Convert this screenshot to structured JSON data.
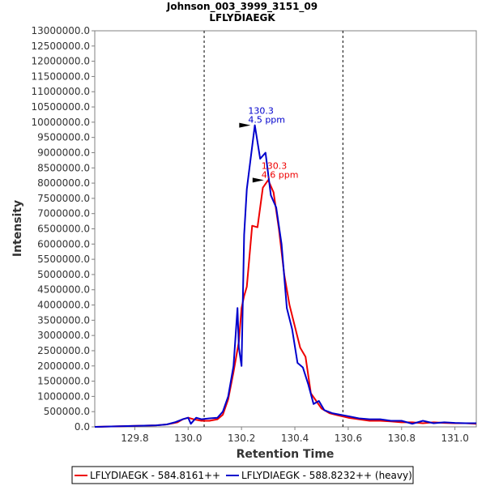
{
  "chart_data": {
    "type": "line",
    "title": "Johnson_003_3999_3151_09",
    "subtitle": "LFLYDIAEGK",
    "xlabel": "Retention Time",
    "ylabel": "Intensity",
    "xlim": [
      129.65,
      131.08
    ],
    "ylim": [
      0,
      13000000
    ],
    "x_ticks": [
      129.8,
      130.0,
      130.2,
      130.4,
      130.6,
      130.8,
      131.0
    ],
    "x_tick_labels": [
      "129.8",
      "130.0",
      "130.2",
      "130.4",
      "130.6",
      "130.8",
      "131.0"
    ],
    "y_ticks": [
      0,
      500000,
      1000000,
      1500000,
      2000000,
      2500000,
      3000000,
      3500000,
      4000000,
      4500000,
      5000000,
      5500000,
      6000000,
      6500000,
      7000000,
      7500000,
      8000000,
      8500000,
      9000000,
      9500000,
      10000000,
      10500000,
      11000000,
      11500000,
      12000000,
      12500000,
      13000000
    ],
    "y_tick_labels": [
      "0.0",
      "500000.0",
      "1000000.0",
      "1500000.0",
      "2000000.0",
      "2500000.0",
      "3000000.0",
      "3500000.0",
      "4000000.0",
      "4500000.0",
      "5000000.0",
      "5500000.0",
      "6000000.0",
      "6500000.0",
      "7000000.0",
      "7500000.0",
      "8000000.0",
      "8500000.0",
      "9000000.0",
      "9500000.0",
      "10000000.0",
      "10500000.0",
      "11000000.0",
      "11500000.0",
      "12000000.0",
      "12500000.0",
      "13000000.0"
    ],
    "vlines": [
      130.06,
      130.58
    ],
    "grid": false,
    "legend_position": "bottom",
    "series": [
      {
        "name": "LFLYDIAEGK - 584.8161++",
        "color": "#ee0000",
        "x": [
          129.65,
          129.88,
          129.92,
          129.96,
          129.98,
          130.0,
          130.02,
          130.05,
          130.08,
          130.11,
          130.13,
          130.15,
          130.17,
          130.19,
          130.2,
          130.21,
          130.22,
          130.24,
          130.26,
          130.28,
          130.3,
          130.32,
          130.34,
          130.36,
          130.38,
          130.4,
          130.42,
          130.44,
          130.46,
          130.48,
          130.5,
          130.53,
          130.56,
          130.6,
          130.64,
          130.68,
          130.72,
          130.76,
          130.8,
          130.84,
          130.88,
          130.92,
          130.96,
          131.0,
          131.04,
          131.08
        ],
        "y": [
          0,
          50000,
          80000,
          150000,
          250000,
          300000,
          250000,
          200000,
          200000,
          250000,
          400000,
          900000,
          1800000,
          2800000,
          3900000,
          4300000,
          4600000,
          6600000,
          6550000,
          7850000,
          8100000,
          7700000,
          6500000,
          5000000,
          4000000,
          3300000,
          2600000,
          2300000,
          1100000,
          850000,
          600000,
          450000,
          380000,
          300000,
          250000,
          200000,
          200000,
          180000,
          150000,
          150000,
          120000,
          150000,
          130000,
          120000,
          120000,
          100000
        ]
      },
      {
        "name": "LFLYDIAEGK - 588.8232++ (heavy)",
        "color": "#0000cc",
        "x": [
          129.65,
          129.88,
          129.92,
          129.95,
          129.98,
          130.0,
          130.01,
          130.03,
          130.05,
          130.08,
          130.11,
          130.13,
          130.15,
          130.17,
          130.185,
          130.19,
          130.2,
          130.21,
          130.22,
          130.23,
          130.25,
          130.27,
          130.29,
          130.31,
          130.33,
          130.35,
          130.37,
          130.39,
          130.41,
          130.43,
          130.45,
          130.47,
          130.49,
          130.51,
          130.54,
          130.57,
          130.6,
          130.64,
          130.68,
          130.72,
          130.76,
          130.8,
          130.84,
          130.88,
          130.92,
          130.96,
          131.0,
          131.04,
          131.08
        ],
        "y": [
          0,
          50000,
          80000,
          150000,
          250000,
          300000,
          100000,
          300000,
          250000,
          280000,
          300000,
          500000,
          1000000,
          2000000,
          3900000,
          2600000,
          2000000,
          6300000,
          7800000,
          8500000,
          9900000,
          8800000,
          9000000,
          7600000,
          7200000,
          6000000,
          3900000,
          3200000,
          2100000,
          1950000,
          1400000,
          750000,
          850000,
          550000,
          450000,
          400000,
          350000,
          280000,
          250000,
          250000,
          200000,
          200000,
          100000,
          200000,
          120000,
          150000,
          130000,
          120000,
          120000
        ]
      }
    ],
    "annotations": [
      {
        "x": 130.24,
        "y": 9900000,
        "line1": "130.3",
        "line2": "4.5 ppm",
        "color": "#0000cc"
      },
      {
        "x": 130.29,
        "y": 8100000,
        "line1": "130.3",
        "line2": "4.6 ppm",
        "color": "#ee0000"
      }
    ]
  }
}
